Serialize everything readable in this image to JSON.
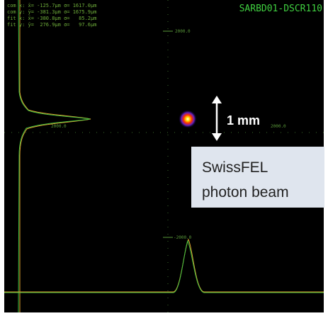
{
  "header": {
    "title": "SARBD01-DSCR110"
  },
  "stats": [
    "com x: x̄= -125.7μm σ= 1617.0μm",
    "com y: ȳ= -381.3μm σ= 1675.9μm",
    "fit x: x̄= -380.8μm σ=   85.2μm",
    "fit y: ȳ=  276.9μm σ=   97.6μm"
  ],
  "axis_labels": {
    "top": "2000.0",
    "bottom": "-2000.0",
    "left": "2000.0",
    "right": "2000.0"
  },
  "annotation": {
    "scale": "1 mm",
    "caption": [
      "SwissFEL",
      "photon beam"
    ]
  }
}
